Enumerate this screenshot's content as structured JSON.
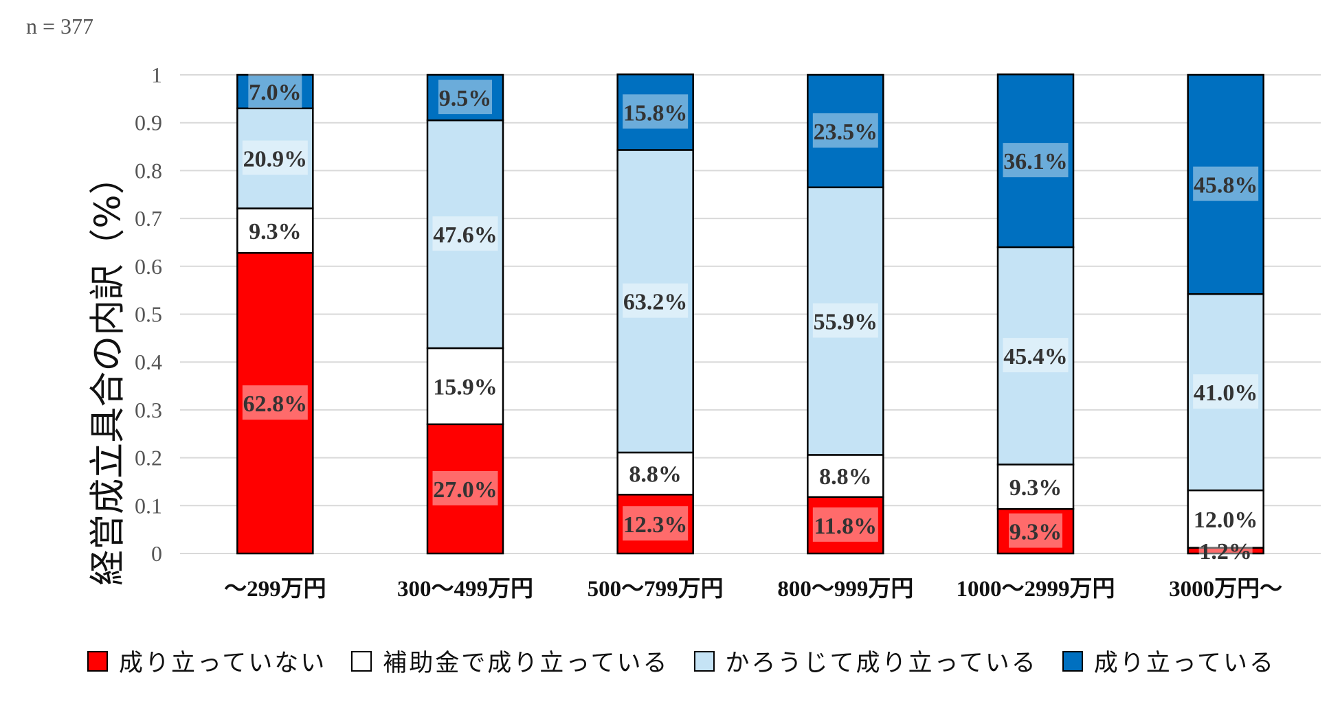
{
  "note": "n = 377",
  "chart_data": {
    "type": "bar",
    "stacked": true,
    "ylabel": "経営成立具合の内訳（%）",
    "xlabel": "",
    "ylim": [
      0,
      1
    ],
    "yticks": [
      "0",
      "0.1",
      "0.2",
      "0.3",
      "0.4",
      "0.5",
      "0.6",
      "0.7",
      "0.8",
      "0.9",
      "1"
    ],
    "grid": true,
    "legend_position": "bottom",
    "categories": [
      "～299万円",
      "300～499万円",
      "500～799万円",
      "800～999万円",
      "1000～2999万円",
      "3000万円～"
    ],
    "series": [
      {
        "name": "成り立っていない",
        "color": "#ff0000",
        "values": [
          0.628,
          0.27,
          0.123,
          0.118,
          0.093,
          0.012
        ],
        "labels": [
          "62.8%",
          "27.0%",
          "12.3%",
          "11.8%",
          "9.3%",
          "1.2%"
        ]
      },
      {
        "name": "補助金で成り立っている",
        "color": "#ffffff",
        "values": [
          0.093,
          0.159,
          0.088,
          0.088,
          0.093,
          0.12
        ],
        "labels": [
          "9.3%",
          "15.9%",
          "8.8%",
          "8.8%",
          "9.3%",
          "12.0%"
        ]
      },
      {
        "name": "かろうじて成り立っている",
        "color": "#c5e3f5",
        "values": [
          0.209,
          0.476,
          0.632,
          0.559,
          0.454,
          0.41
        ],
        "labels": [
          "20.9%",
          "47.6%",
          "63.2%",
          "55.9%",
          "45.4%",
          "41.0%"
        ]
      },
      {
        "name": "成り立っている",
        "color": "#0070c0",
        "values": [
          0.07,
          0.095,
          0.158,
          0.235,
          0.361,
          0.458
        ],
        "labels": [
          "7.0%",
          "9.5%",
          "15.8%",
          "23.5%",
          "36.1%",
          "45.8%"
        ]
      }
    ]
  }
}
